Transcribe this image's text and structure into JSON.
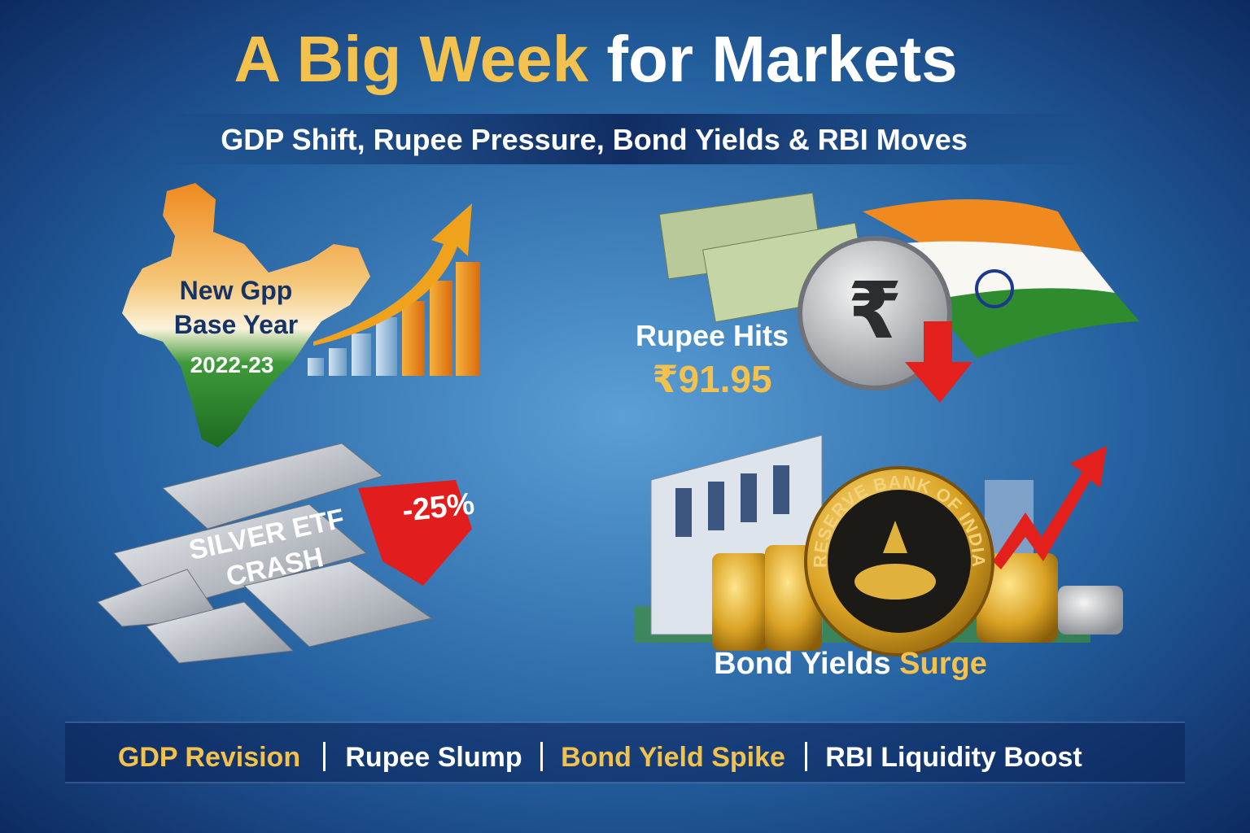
{
  "title": {
    "highlight": "A Big Week",
    "rest": "for Markets"
  },
  "subtitle": "GDP Shift, Rupee Pressure, Bond Yields & RBI Moves",
  "panels": [
    {
      "lines": [
        "New Gpp",
        "Base Year"
      ],
      "year": "2022-23"
    },
    {
      "label": "Rupee Hits",
      "value": "₹91.95",
      "coin_symbol": "₹"
    },
    {
      "lines": [
        "SILVER ETF",
        "CRASH"
      ],
      "change": "-25%"
    },
    {
      "label": "Bond Yields",
      "highlight": "Surge",
      "seal": "RESERVE BANK OF INDIA"
    }
  ],
  "footer": [
    "GDP Revision",
    "Rupee Slump",
    "Bond Yield Spike",
    "RBI Liquidity Boost"
  ]
}
